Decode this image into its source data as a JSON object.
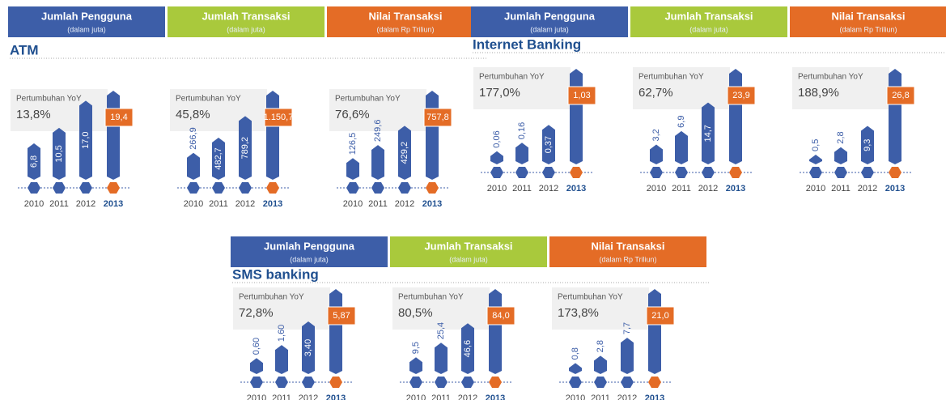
{
  "panels": [
    {
      "title": "ATM",
      "headers": [
        {
          "title": "Jumlah Pengguna",
          "subtitle": "(dalam juta)"
        },
        {
          "title": "Jumlah Transaksi",
          "subtitle": "(dalam juta)"
        },
        {
          "title": "Nilai Transaksi",
          "subtitle": "(dalam Rp Triliun)"
        }
      ]
    },
    {
      "title": "Internet Banking",
      "headers": [
        {
          "title": "Jumlah Pengguna",
          "subtitle": "(dalam juta)"
        },
        {
          "title": "Jumlah Transaksi",
          "subtitle": "(dalam juta)"
        },
        {
          "title": "Nilai Transaksi",
          "subtitle": "(dalam Rp Triliun)"
        }
      ]
    },
    {
      "title": "SMS banking",
      "headers": [
        {
          "title": "Jumlah Pengguna",
          "subtitle": "(dalam juta)"
        },
        {
          "title": "Jumlah Transaksi",
          "subtitle": "(dalam juta)"
        },
        {
          "title": "Nilai Transaksi",
          "subtitle": "(dalam Rp Triliun)"
        }
      ]
    }
  ],
  "chart_data": [
    {
      "type": "bar",
      "annotation": "Pertumbuhan YoY",
      "growth": "13,8%",
      "categories": [
        "2010",
        "2011",
        "2012",
        "2013"
      ],
      "values": [
        6.8,
        10.5,
        17.0,
        19.4
      ],
      "value_labels": [
        "6,8",
        "10,5",
        "17,0",
        "19,4"
      ],
      "color": "#3d5ea8",
      "highlight_color": "#e46c26"
    },
    {
      "type": "bar",
      "annotation": "Pertumbuhan YoY",
      "growth": "45,8%",
      "categories": [
        "2010",
        "2011",
        "2012",
        "2013"
      ],
      "values": [
        266.9,
        482.7,
        789.2,
        1150.7
      ],
      "value_labels": [
        "266,9",
        "482,7",
        "789,2",
        "1.150,7"
      ],
      "color": "#3d5ea8",
      "highlight_color": "#e46c26"
    },
    {
      "type": "bar",
      "annotation": "Pertumbuhan YoY",
      "growth": "76,6%",
      "categories": [
        "2010",
        "2011",
        "2012",
        "2013"
      ],
      "values": [
        126.5,
        249.6,
        429.2,
        757.8
      ],
      "value_labels": [
        "126,5",
        "249,6",
        "429,2",
        "757,8"
      ],
      "color": "#3d5ea8",
      "highlight_color": "#e46c26"
    },
    {
      "type": "bar",
      "annotation": "Pertumbuhan YoY",
      "growth": "177,0%",
      "categories": [
        "2010",
        "2011",
        "2012",
        "2013"
      ],
      "values": [
        0.06,
        0.16,
        0.37,
        1.03
      ],
      "value_labels": [
        "0,06",
        "0,16",
        "0,37",
        "1,03"
      ],
      "color": "#3d5ea8",
      "highlight_color": "#e46c26"
    },
    {
      "type": "bar",
      "annotation": "Pertumbuhan YoY",
      "growth": "62,7%",
      "categories": [
        "2010",
        "2011",
        "2012",
        "2013"
      ],
      "values": [
        3.2,
        6.9,
        14.7,
        23.9
      ],
      "value_labels": [
        "3,2",
        "6,9",
        "14,7",
        "23,9"
      ],
      "color": "#3d5ea8",
      "highlight_color": "#e46c26"
    },
    {
      "type": "bar",
      "annotation": "Pertumbuhan YoY",
      "growth": "188,9%",
      "categories": [
        "2010",
        "2011",
        "2012",
        "2013"
      ],
      "values": [
        0.5,
        2.8,
        9.3,
        26.8
      ],
      "value_labels": [
        "0,5",
        "2,8",
        "9,3",
        "26,8"
      ],
      "color": "#3d5ea8",
      "highlight_color": "#e46c26"
    },
    {
      "type": "bar",
      "annotation": "Pertumbuhan YoY",
      "growth": "72,8%",
      "categories": [
        "2010",
        "2011",
        "2012",
        "2013"
      ],
      "values": [
        0.6,
        1.6,
        3.4,
        5.87
      ],
      "value_labels": [
        "0,60",
        "1,60",
        "3,40",
        "5,87"
      ],
      "color": "#3d5ea8",
      "highlight_color": "#e46c26"
    },
    {
      "type": "bar",
      "annotation": "Pertumbuhan YoY",
      "growth": "80,5%",
      "categories": [
        "2010",
        "2011",
        "2012",
        "2013"
      ],
      "values": [
        9.5,
        25.4,
        46.6,
        84.0
      ],
      "value_labels": [
        "9,5",
        "25,4",
        "46,6",
        "84,0"
      ],
      "color": "#3d5ea8",
      "highlight_color": "#e46c26"
    },
    {
      "type": "bar",
      "annotation": "Pertumbuhan YoY",
      "growth": "173,8%",
      "categories": [
        "2010",
        "2011",
        "2012",
        "2013"
      ],
      "values": [
        0.8,
        2.8,
        7.7,
        21.0
      ],
      "value_labels": [
        "0,8",
        "2,8",
        "7,7",
        "21,0"
      ],
      "color": "#3d5ea8",
      "highlight_color": "#e46c26"
    }
  ]
}
